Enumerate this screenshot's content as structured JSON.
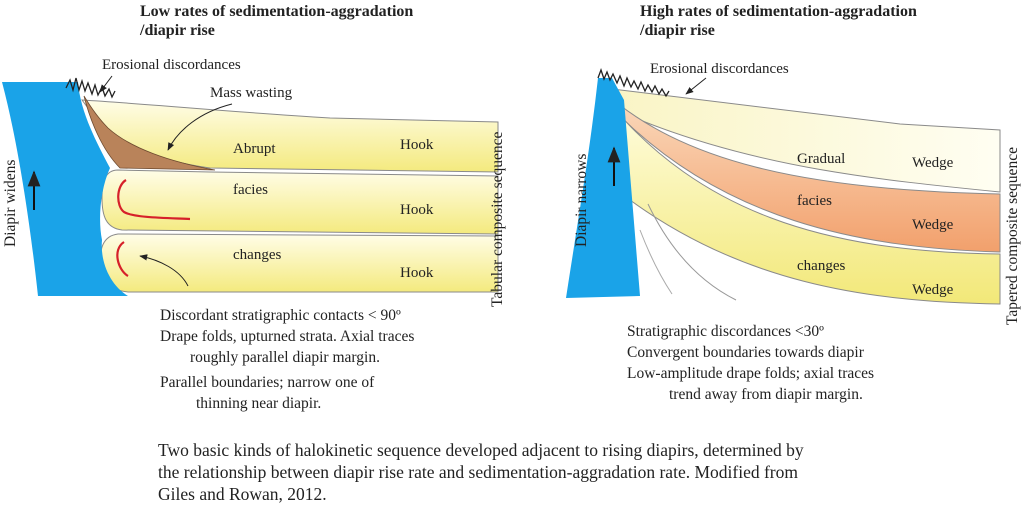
{
  "left_panel": {
    "title_line1": "Low rates of sedimentation-aggradation",
    "title_line2": "/diapir rise",
    "erosional_label": "Erosional discordances",
    "mass_wasting_label": "Mass wasting",
    "abrupt_label": "Abrupt",
    "facies_label": "facies",
    "changes_label": "changes",
    "hook_labels": [
      "Hook",
      "Hook",
      "Hook"
    ],
    "diapir_label": "Diapir widens",
    "sequence_label": "Tabular composite sequence",
    "notes": [
      "Discordant stratigraphic contacts < 90º",
      "Drape folds, upturned strata. Axial traces",
      "roughly parallel diapir margin.",
      "Parallel boundaries; narrow one of",
      "thinning near diapir."
    ]
  },
  "right_panel": {
    "title_line1": "High rates of sedimentation-aggradation",
    "title_line2": "/diapir rise",
    "erosional_label": "Erosional discordances",
    "gradual_label": "Gradual",
    "facies_label": "facies",
    "changes_label": "changes",
    "wedge_labels": [
      "Wedge",
      "Wedge",
      "Wedge"
    ],
    "diapir_label": "Diapir narrows",
    "sequence_label": "Tapered composite sequence",
    "notes": [
      "Stratigraphic discordances <30º",
      "Convergent boundaries towards diapir",
      "Low-amplitude drape folds; axial traces",
      "trend away from diapir margin."
    ]
  },
  "caption": [
    "Two basic kinds of halokinetic sequence developed adjacent to rising diapirs, determined by",
    "the relationship between diapir rise rate and sedimentation-aggradation rate. Modified from",
    "Giles and Rowan, 2012."
  ],
  "colors": {
    "diapir": "#1aa3e8",
    "strata_light": "#fffde0",
    "strata_yellow": "#f7ef8a",
    "strata_orange": "#f4a878",
    "mass_wasting": "#b9835a",
    "fold_trace": "#d6202a"
  }
}
